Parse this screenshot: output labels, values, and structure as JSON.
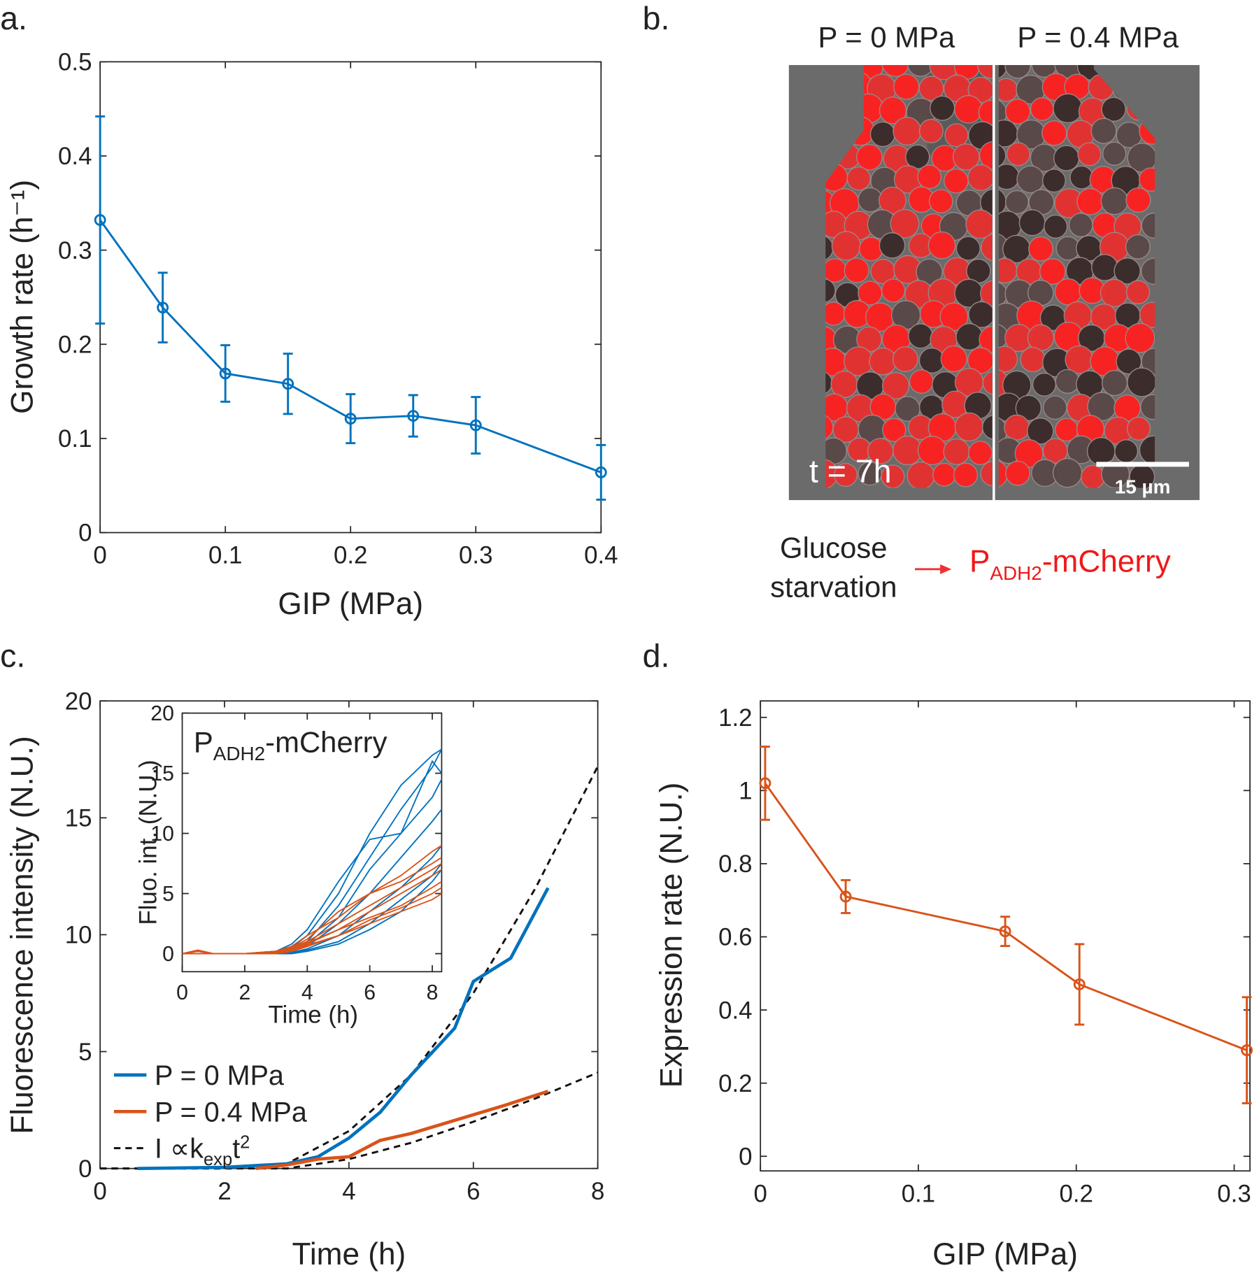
{
  "panel_labels": [
    "a.",
    "b.",
    "c.",
    "d."
  ],
  "image_panel": {
    "left_title": "P = 0 MPa",
    "right_title": "P = 0.4 MPa",
    "time_label": "t = 7h",
    "scale_bar": "15 µm",
    "condition": [
      "Glucose",
      "starvation"
    ],
    "reporter": {
      "main": "P",
      "sub": "ADH2",
      "tail": "-mCherry"
    }
  },
  "chart_data": [
    {
      "type": "errorbar",
      "xlabel": "GIP (MPa)",
      "ylabel": "Growth rate (h⁻¹)",
      "xlim": [
        0,
        0.4
      ],
      "ylim": [
        0,
        0.5
      ],
      "xticks": [
        0,
        0.1,
        0.2,
        0.3,
        0.4
      ],
      "yticks": [
        0,
        0.1,
        0.2,
        0.3,
        0.4,
        0.5
      ],
      "color": "#0072BD",
      "x": [
        0,
        0.05,
        0.1,
        0.15,
        0.2,
        0.25,
        0.3,
        0.4
      ],
      "values": [
        0.332,
        0.239,
        0.169,
        0.158,
        0.121,
        0.124,
        0.114,
        0.064
      ],
      "errors": [
        0.11,
        0.037,
        0.03,
        0.032,
        0.026,
        0.022,
        0.03,
        0.029
      ]
    },
    {
      "type": "line",
      "xlabel": "Time (h)",
      "ylabel": "Fluorescence intensity (N.U.)",
      "xlim": [
        0,
        8
      ],
      "ylim": [
        0,
        20
      ],
      "xticks": [
        0,
        2,
        4,
        6,
        8
      ],
      "yticks": [
        0,
        5,
        10,
        15,
        20
      ],
      "series": [
        {
          "name": "P = 0 MPa",
          "color": "#0072BD",
          "x": [
            0.6,
            2,
            3,
            3.5,
            4,
            4.5,
            5,
            5.7,
            6,
            6.6,
            7,
            7.2
          ],
          "values": [
            0,
            0.05,
            0.2,
            0.5,
            1.3,
            2.4,
            4,
            6,
            8,
            9,
            11,
            12
          ]
        },
        {
          "name": "P = 0.4 MPa",
          "color": "#D95319",
          "x": [
            2.5,
            3,
            3.5,
            4,
            4.5,
            5,
            5.5,
            6,
            6.5,
            7.2
          ],
          "values": [
            0,
            0.15,
            0.4,
            0.5,
            1.2,
            1.5,
            1.9,
            2.3,
            2.7,
            3.3
          ]
        }
      ],
      "fits": [
        {
          "x": [
            0,
            1,
            2,
            3,
            4,
            5,
            6,
            7,
            8
          ],
          "values": [
            0,
            0,
            0,
            0.2,
            1.6,
            4,
            7.5,
            12,
            17.2
          ]
        },
        {
          "x": [
            0,
            3,
            4,
            5,
            6,
            7,
            8
          ],
          "values": [
            0,
            0,
            0.4,
            1.1,
            2,
            3,
            4.1
          ]
        }
      ],
      "fit_label": {
        "main": "I ∝k",
        "sub": "exp",
        "tail": "t",
        "sup": "2"
      }
    },
    {
      "type": "line",
      "xlabel": "Time (h)",
      "ylabel": "Fluo. int. (N.U.)",
      "title": {
        "main": "P",
        "sub": "ADH2",
        "tail": "-mCherry"
      },
      "xlim": [
        0,
        8.3
      ],
      "ylim": [
        -1.5,
        20
      ],
      "xticks": [
        0,
        2,
        4,
        6,
        8
      ],
      "yticks": [
        0,
        5,
        10,
        15,
        20
      ],
      "x": [
        0,
        0.5,
        1,
        2,
        3,
        3.5,
        4,
        5,
        6,
        7,
        8,
        8.3
      ],
      "series": [
        {
          "color": "#0072BD",
          "values": [
            0,
            0,
            0,
            0,
            0,
            0.5,
            1.5,
            5,
            10,
            14,
            16.5,
            17
          ]
        },
        {
          "color": "#0072BD",
          "values": [
            0,
            0,
            0,
            0,
            0,
            0.3,
            1,
            4,
            8,
            12,
            15.5,
            17
          ]
        },
        {
          "color": "#0072BD",
          "values": [
            0,
            0,
            0,
            0,
            0.2,
            0.8,
            2,
            6,
            9.5,
            10,
            16,
            15
          ]
        },
        {
          "color": "#0072BD",
          "values": [
            0,
            0,
            0,
            0,
            0,
            0.2,
            0.8,
            3,
            7,
            10,
            13,
            14.5
          ]
        },
        {
          "color": "#0072BD",
          "values": [
            0,
            0,
            0,
            0,
            0,
            0.2,
            0.6,
            2.5,
            5,
            8,
            11,
            12
          ]
        },
        {
          "color": "#0072BD",
          "values": [
            0,
            0,
            0,
            0,
            0,
            0.1,
            0.4,
            1.5,
            3.5,
            5.5,
            8,
            9
          ]
        },
        {
          "color": "#0072BD",
          "values": [
            0,
            0,
            0,
            0,
            0,
            0.1,
            0.3,
            1,
            2.5,
            4.5,
            6.5,
            7.5
          ]
        },
        {
          "color": "#0072BD",
          "values": [
            0,
            0,
            0,
            0,
            0,
            0,
            0.2,
            0.8,
            2,
            3.5,
            6,
            7
          ]
        },
        {
          "color": "#D95319",
          "values": [
            0,
            0.3,
            0,
            0,
            0.2,
            0.6,
            1.5,
            3,
            5,
            6.5,
            8.5,
            9
          ]
        },
        {
          "color": "#D95319",
          "values": [
            0,
            0.2,
            0,
            0,
            0.1,
            0.5,
            1.2,
            3.5,
            5,
            6,
            7.5,
            8
          ]
        },
        {
          "color": "#D95319",
          "values": [
            0,
            0,
            0,
            0,
            0.2,
            0.5,
            1,
            2.5,
            4,
            5.5,
            7,
            7.5
          ]
        },
        {
          "color": "#D95319",
          "values": [
            0,
            0,
            0,
            0,
            0.1,
            0.4,
            0.9,
            2,
            3.5,
            5,
            6.5,
            7
          ]
        },
        {
          "color": "#D95319",
          "values": [
            0,
            0,
            0,
            0,
            0.1,
            0.3,
            0.8,
            2,
            3,
            4,
            5.5,
            6
          ]
        },
        {
          "color": "#D95319",
          "values": [
            0,
            0,
            0,
            0,
            0,
            0.3,
            0.7,
            1.5,
            2.8,
            3.8,
            5,
            5.5
          ]
        },
        {
          "color": "#D95319",
          "values": [
            0,
            0,
            0,
            0,
            0,
            0.2,
            0.6,
            1.5,
            2.5,
            3.5,
            4.5,
            5
          ]
        }
      ]
    },
    {
      "type": "errorbar",
      "xlabel": "GIP (MPa)",
      "ylabel": "Expression rate (N.U.)",
      "xlim": [
        0,
        0.31
      ],
      "ylim": [
        -0.04,
        1.245
      ],
      "xticks": [
        0,
        0.1,
        0.2,
        0.3
      ],
      "yticks": [
        0,
        0.2,
        0.4,
        0.6,
        0.8,
        1,
        1.2
      ],
      "color": "#D95319",
      "x": [
        0.003,
        0.054,
        0.155,
        0.202,
        0.308
      ],
      "values": [
        1.02,
        0.71,
        0.615,
        0.47,
        0.29
      ],
      "errors": [
        0.1,
        0.045,
        0.04,
        0.11,
        0.145
      ]
    }
  ]
}
